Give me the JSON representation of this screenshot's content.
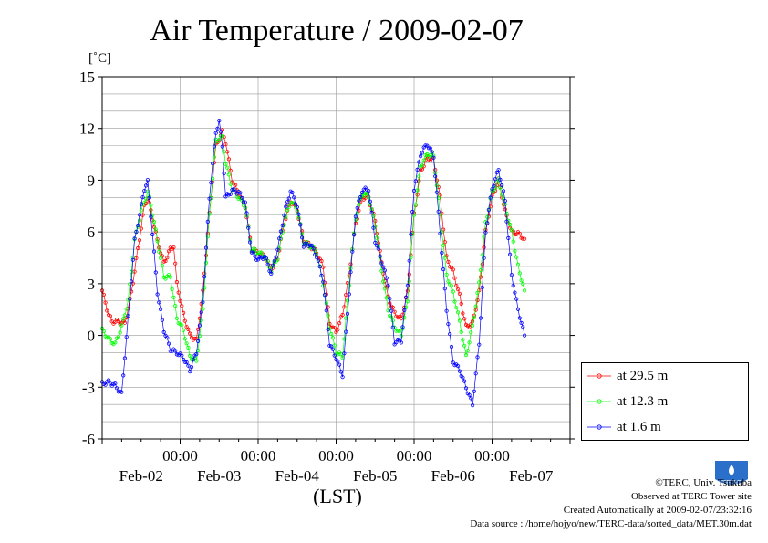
{
  "title": "Air Temperature / 2009-02-07",
  "unit_label": "[˚C]",
  "x_axis_label": "(LST)",
  "legend": [
    {
      "label": "at 29.5 m",
      "color": "#ff0000"
    },
    {
      "label": "at 12.3 m",
      "color": "#00ff00"
    },
    {
      "label": "at 1.6 m",
      "color": "#0000ff"
    }
  ],
  "credits": {
    "copyright": "©TERC, Univ. Tsukuba",
    "observed": "Observed at TERC Tower site",
    "created": "Created Automatically at 2009-02-07/23:32:16",
    "source": "Data source : /home/hojyo/new/TERC-data/sorted_data/MET.30m.dat"
  },
  "logo_text": "TERC",
  "chart_data": {
    "type": "line",
    "title": "Air Temperature / 2009-02-07",
    "ylabel": "[˚C]",
    "xlabel": "(LST)",
    "ylim": [
      -6,
      15
    ],
    "xlim": [
      0,
      144
    ],
    "y_ticks": [
      -6,
      -3,
      0,
      3,
      6,
      9,
      12,
      15
    ],
    "x_ticks": [
      {
        "hour": 24,
        "time": "00:00",
        "date": ""
      },
      {
        "hour": 48,
        "time": "00:00",
        "date": ""
      },
      {
        "hour": 72,
        "time": "00:00",
        "date": ""
      },
      {
        "hour": 96,
        "time": "00:00",
        "date": ""
      },
      {
        "hour": 120,
        "time": "00:00",
        "date": ""
      }
    ],
    "date_labels": [
      {
        "hour": 12,
        "label": "Feb-02"
      },
      {
        "hour": 36,
        "label": "Feb-03"
      },
      {
        "hour": 60,
        "label": "Feb-04"
      },
      {
        "hour": 84,
        "label": "Feb-05"
      },
      {
        "hour": 108,
        "label": "Feb-06"
      },
      {
        "hour": 132,
        "label": "Feb-07"
      }
    ],
    "grid": true,
    "legend_position": "right",
    "series": [
      {
        "name": "at 29.5 m",
        "color": "#ff0000",
        "points": [
          [
            0,
            2.6
          ],
          [
            2,
            1.2
          ],
          [
            3,
            0.8
          ],
          [
            5,
            0.8
          ],
          [
            7,
            0.7
          ],
          [
            9,
            2.5
          ],
          [
            11,
            5.0
          ],
          [
            13,
            7.5
          ],
          [
            14,
            8.0
          ],
          [
            15,
            7.2
          ],
          [
            17,
            5.5
          ],
          [
            19,
            4.2
          ],
          [
            21,
            5.0
          ],
          [
            22,
            5.2
          ],
          [
            23,
            3.0
          ],
          [
            25,
            1.2
          ],
          [
            27,
            0.0
          ],
          [
            29,
            -0.3
          ],
          [
            31,
            2.5
          ],
          [
            33,
            7.0
          ],
          [
            35,
            11.0
          ],
          [
            37,
            11.8
          ],
          [
            38,
            11.2
          ],
          [
            40,
            9.0
          ],
          [
            42,
            8.2
          ],
          [
            44,
            7.5
          ],
          [
            46,
            5.0
          ],
          [
            48,
            4.8
          ],
          [
            50,
            4.6
          ],
          [
            52,
            3.8
          ],
          [
            54,
            4.5
          ],
          [
            56,
            6.5
          ],
          [
            58,
            7.8
          ],
          [
            60,
            7.3
          ],
          [
            62,
            5.5
          ],
          [
            64,
            5.2
          ],
          [
            66,
            4.8
          ],
          [
            68,
            4.0
          ],
          [
            70,
            0.7
          ],
          [
            72,
            0.2
          ],
          [
            74,
            1.2
          ],
          [
            76,
            3.5
          ],
          [
            78,
            6.5
          ],
          [
            80,
            8.0
          ],
          [
            82,
            8.0
          ],
          [
            84,
            6.6
          ],
          [
            86,
            4.2
          ],
          [
            88,
            2.2
          ],
          [
            90,
            1.3
          ],
          [
            92,
            0.9
          ],
          [
            94,
            2.5
          ],
          [
            96,
            7.0
          ],
          [
            98,
            9.5
          ],
          [
            100,
            10.3
          ],
          [
            102,
            10.2
          ],
          [
            104,
            8.0
          ],
          [
            106,
            4.5
          ],
          [
            108,
            3.7
          ],
          [
            110,
            2.3
          ],
          [
            112,
            0.5
          ],
          [
            114,
            0.7
          ],
          [
            116,
            2.5
          ],
          [
            118,
            6.0
          ],
          [
            120,
            8.0
          ],
          [
            122,
            9.0
          ],
          [
            124,
            7.2
          ],
          [
            126,
            6.0
          ],
          [
            128,
            5.9
          ],
          [
            130,
            5.6
          ]
        ]
      },
      {
        "name": "at 12.3 m",
        "color": "#00ff00",
        "points": [
          [
            0,
            0.3
          ],
          [
            2,
            -0.2
          ],
          [
            4,
            -0.5
          ],
          [
            6,
            0.5
          ],
          [
            8,
            2.0
          ],
          [
            10,
            5.5
          ],
          [
            12,
            7.2
          ],
          [
            14,
            8.3
          ],
          [
            15,
            7.6
          ],
          [
            17,
            5.5
          ],
          [
            19,
            3.4
          ],
          [
            21,
            3.4
          ],
          [
            23,
            1.0
          ],
          [
            25,
            0.3
          ],
          [
            27,
            -1.2
          ],
          [
            29,
            -1.5
          ],
          [
            31,
            1.5
          ],
          [
            33,
            7.0
          ],
          [
            35,
            11.3
          ],
          [
            37,
            11.5
          ],
          [
            38,
            10.0
          ],
          [
            40,
            8.5
          ],
          [
            42,
            8.0
          ],
          [
            44,
            7.5
          ],
          [
            46,
            5.0
          ],
          [
            48,
            4.8
          ],
          [
            50,
            4.6
          ],
          [
            52,
            3.8
          ],
          [
            54,
            4.5
          ],
          [
            56,
            6.5
          ],
          [
            58,
            7.8
          ],
          [
            60,
            7.3
          ],
          [
            62,
            5.4
          ],
          [
            64,
            5.2
          ],
          [
            66,
            4.8
          ],
          [
            68,
            3.0
          ],
          [
            70,
            0.5
          ],
          [
            72,
            -1.0
          ],
          [
            74,
            -1.2
          ],
          [
            76,
            3.0
          ],
          [
            78,
            6.8
          ],
          [
            80,
            8.2
          ],
          [
            82,
            8.1
          ],
          [
            84,
            6.4
          ],
          [
            86,
            3.8
          ],
          [
            88,
            1.5
          ],
          [
            90,
            0.5
          ],
          [
            92,
            0.0
          ],
          [
            94,
            2.0
          ],
          [
            96,
            7.0
          ],
          [
            98,
            9.8
          ],
          [
            100,
            10.5
          ],
          [
            102,
            10.4
          ],
          [
            104,
            7.0
          ],
          [
            106,
            3.5
          ],
          [
            108,
            2.5
          ],
          [
            110,
            0.8
          ],
          [
            112,
            -1.2
          ],
          [
            114,
            0.5
          ],
          [
            116,
            3.0
          ],
          [
            118,
            6.5
          ],
          [
            120,
            8.3
          ],
          [
            122,
            9.0
          ],
          [
            124,
            7.5
          ],
          [
            126,
            6.0
          ],
          [
            128,
            4.0
          ],
          [
            130,
            2.6
          ]
        ]
      },
      {
        "name": "at 1.6 m",
        "color": "#0000ff",
        "points": [
          [
            0,
            -2.8
          ],
          [
            2,
            -2.7
          ],
          [
            4,
            -2.9
          ],
          [
            6,
            -3.4
          ],
          [
            8,
            1.0
          ],
          [
            10,
            5.5
          ],
          [
            12,
            7.5
          ],
          [
            13,
            8.5
          ],
          [
            14,
            8.9
          ],
          [
            15,
            7.0
          ],
          [
            17,
            2.5
          ],
          [
            19,
            0.3
          ],
          [
            21,
            -0.8
          ],
          [
            23,
            -1.0
          ],
          [
            25,
            -1.3
          ],
          [
            27,
            -2.0
          ],
          [
            29,
            -1.0
          ],
          [
            31,
            2.0
          ],
          [
            33,
            8.0
          ],
          [
            35,
            11.8
          ],
          [
            36,
            12.4
          ],
          [
            37,
            11.0
          ],
          [
            38,
            8.0
          ],
          [
            40,
            8.4
          ],
          [
            42,
            8.3
          ],
          [
            44,
            7.7
          ],
          [
            46,
            4.8
          ],
          [
            48,
            4.4
          ],
          [
            50,
            4.6
          ],
          [
            52,
            3.6
          ],
          [
            54,
            5.0
          ],
          [
            56,
            7.0
          ],
          [
            58,
            8.4
          ],
          [
            60,
            7.5
          ],
          [
            62,
            5.2
          ],
          [
            64,
            5.3
          ],
          [
            66,
            4.6
          ],
          [
            68,
            3.2
          ],
          [
            70,
            -0.5
          ],
          [
            72,
            -1.3
          ],
          [
            74,
            -2.3
          ],
          [
            76,
            2.5
          ],
          [
            78,
            7.0
          ],
          [
            80,
            8.4
          ],
          [
            82,
            8.5
          ],
          [
            84,
            5.5
          ],
          [
            86,
            4.3
          ],
          [
            88,
            3.0
          ],
          [
            90,
            -0.4
          ],
          [
            92,
            -0.3
          ],
          [
            94,
            3.0
          ],
          [
            96,
            8.5
          ],
          [
            98,
            10.5
          ],
          [
            100,
            11.1
          ],
          [
            102,
            10.4
          ],
          [
            104,
            6.0
          ],
          [
            106,
            1.5
          ],
          [
            108,
            -1.5
          ],
          [
            110,
            -2.0
          ],
          [
            112,
            -3.0
          ],
          [
            114,
            -4.0
          ],
          [
            116,
            -0.5
          ],
          [
            118,
            6.0
          ],
          [
            120,
            8.5
          ],
          [
            122,
            9.6
          ],
          [
            124,
            7.8
          ],
          [
            126,
            3.5
          ],
          [
            128,
            1.5
          ],
          [
            130,
            0.0
          ]
        ]
      }
    ]
  }
}
